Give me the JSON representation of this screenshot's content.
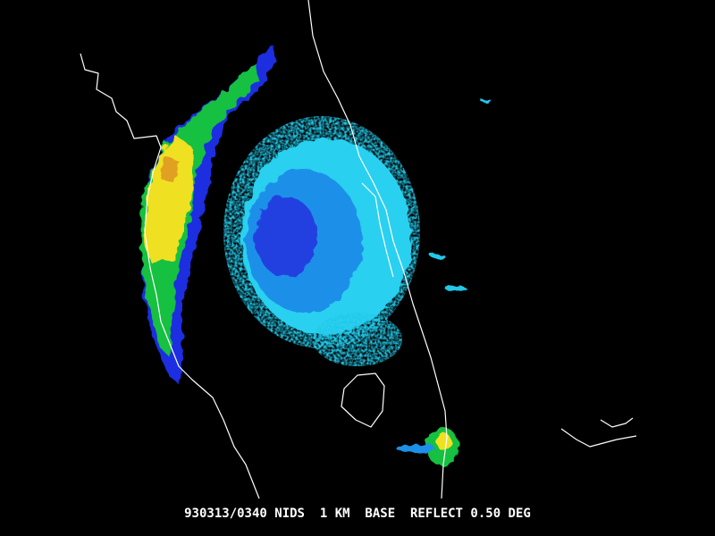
{
  "caption": "930313/0340 NIDS  1 KM  BASE  REFLECT 0.50 DEG"
}
